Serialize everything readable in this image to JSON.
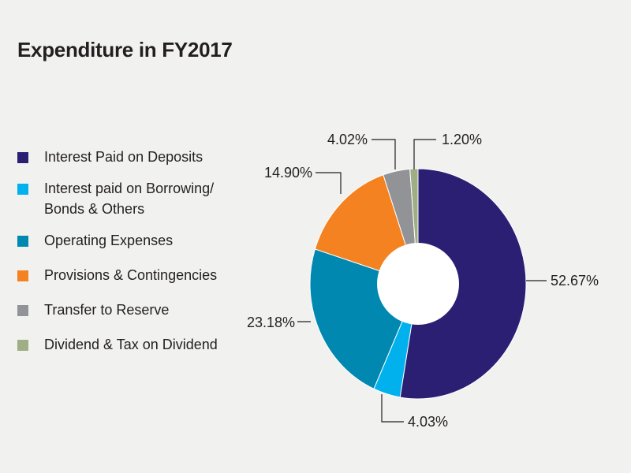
{
  "chart_data": {
    "type": "pie",
    "title": "Expenditure in FY2017",
    "donut": true,
    "legend_position": "left",
    "slices": [
      {
        "name": "Interest Paid on Deposits",
        "value": 52.67,
        "label": "52.67%",
        "color": "#2b1f73"
      },
      {
        "name": "Interest paid on Borrowing/\nBonds & Others",
        "value": 4.03,
        "label": "4.03%",
        "color": "#00b1ee"
      },
      {
        "name": "Operating Expenses",
        "value": 23.18,
        "label": "23.18%",
        "color": "#0088b0"
      },
      {
        "name": "Provisions & Contingencies",
        "value": 14.9,
        "label": "14.90%",
        "color": "#f58220"
      },
      {
        "name": "Transfer to Reserve",
        "value": 4.02,
        "label": "4.02%",
        "color": "#919396"
      },
      {
        "name": "Dividend & Tax on Dividend",
        "value": 1.2,
        "label": "1.20%",
        "color": "#9fae84"
      }
    ]
  }
}
